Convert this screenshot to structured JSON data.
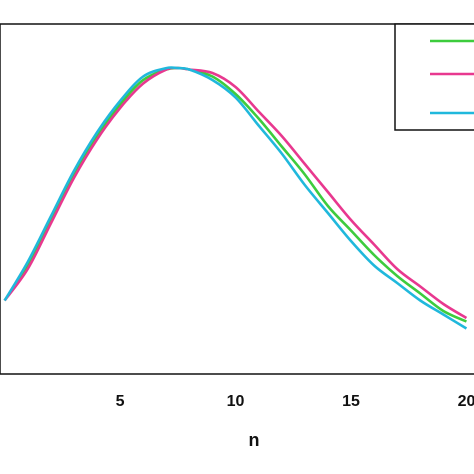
{
  "chart_data": {
    "type": "line",
    "xlabel": "n",
    "ylabel": "",
    "xlim": [
      -0.2,
      20.5
    ],
    "ylim": [
      0,
      1.0
    ],
    "x_ticks": [
      5,
      10,
      15,
      20
    ],
    "x_tick_labels": [
      "5",
      "10",
      "15",
      "20"
    ],
    "grid": false,
    "legend": {
      "placement": "top-right",
      "entries": [
        "",
        "",
        ""
      ]
    },
    "series": [
      {
        "color": "#3dcc3d",
        "x": [
          0,
          1,
          2,
          3,
          4,
          5,
          6,
          7,
          7.5,
          8,
          9,
          10,
          11,
          12,
          13,
          14,
          15,
          16,
          17,
          18,
          19,
          20
        ],
        "y": [
          0.21,
          0.31,
          0.44,
          0.57,
          0.68,
          0.77,
          0.84,
          0.87,
          0.874,
          0.87,
          0.85,
          0.8,
          0.73,
          0.65,
          0.57,
          0.48,
          0.41,
          0.34,
          0.28,
          0.23,
          0.18,
          0.15
        ]
      },
      {
        "color": "#e8388f",
        "x": [
          0,
          1,
          2,
          3,
          4,
          5,
          6,
          7,
          7.5,
          8,
          9,
          10,
          11,
          12,
          13,
          14,
          15,
          16,
          17,
          18,
          19,
          20
        ],
        "y": [
          0.21,
          0.3,
          0.43,
          0.56,
          0.67,
          0.76,
          0.83,
          0.87,
          0.874,
          0.87,
          0.86,
          0.82,
          0.75,
          0.68,
          0.6,
          0.52,
          0.44,
          0.37,
          0.3,
          0.25,
          0.2,
          0.16
        ]
      },
      {
        "color": "#20b8dc",
        "x": [
          0,
          1,
          2,
          3,
          4,
          5,
          6,
          7,
          7.5,
          8,
          9,
          10,
          11,
          12,
          13,
          14,
          15,
          16,
          17,
          18,
          19,
          20
        ],
        "y": [
          0.21,
          0.32,
          0.45,
          0.58,
          0.69,
          0.78,
          0.85,
          0.874,
          0.874,
          0.87,
          0.84,
          0.79,
          0.71,
          0.63,
          0.54,
          0.46,
          0.38,
          0.31,
          0.26,
          0.21,
          0.17,
          0.13
        ]
      }
    ]
  }
}
